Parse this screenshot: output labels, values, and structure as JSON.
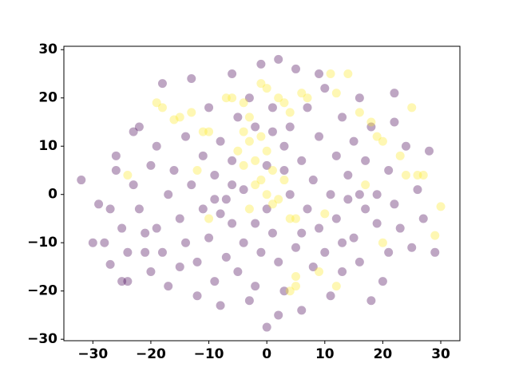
{
  "chart_data": {
    "type": "scatter",
    "xlim": [
      -35,
      33.3
    ],
    "ylim": [
      -30.3,
      30.7
    ],
    "xticks": [
      {
        "value": -30,
        "label": "−30"
      },
      {
        "value": -20,
        "label": "−20"
      },
      {
        "value": -10,
        "label": "−10"
      },
      0,
      10,
      20,
      30
    ],
    "yticks": [
      {
        "value": -30,
        "label": "−30"
      },
      {
        "value": -20,
        "label": "−20"
      },
      {
        "value": -10,
        "label": "−10"
      },
      0,
      10,
      20,
      30
    ],
    "grid": false,
    "opacity": 0.35,
    "series": [
      {
        "color": "#440154",
        "x": [
          -32,
          -29,
          -28,
          -27,
          -26,
          -26,
          -25,
          -24,
          -24,
          -23,
          -22,
          -22,
          -21,
          -20,
          -20,
          -19,
          -18,
          -18,
          -17,
          -17,
          -16,
          -15,
          -14,
          -14,
          -13,
          -13,
          -12,
          -12,
          -11,
          -11,
          -10,
          -10,
          -9,
          -9,
          -8,
          -8,
          -7,
          -7,
          -6,
          -6,
          -6,
          -5,
          -5,
          -4,
          -4,
          -3,
          -3,
          -2,
          -2,
          -1,
          -1,
          0,
          0,
          1,
          1,
          2,
          2,
          3,
          3,
          4,
          4,
          5,
          5,
          6,
          6,
          7,
          7,
          8,
          8,
          9,
          9,
          10,
          10,
          11,
          11,
          12,
          12,
          13,
          13,
          14,
          14,
          15,
          15,
          16,
          16,
          17,
          17,
          18,
          18,
          19,
          19,
          20,
          21,
          21,
          22,
          22,
          23,
          24,
          25,
          26,
          27,
          28,
          29,
          -30,
          -27,
          -25,
          -23,
          -21,
          -19,
          -15,
          -8,
          3,
          0,
          -6,
          1,
          6,
          13,
          16,
          22,
          -2,
          2,
          9,
          -9
        ],
        "values": [
          3,
          -2,
          -10,
          -14.5,
          8,
          5,
          -7,
          -18,
          -12,
          2,
          14,
          -3,
          -8,
          6,
          -16,
          10,
          23,
          -12,
          0,
          -19,
          5,
          -5,
          12,
          -10,
          24,
          2,
          -14,
          -21,
          8,
          -3,
          18,
          -9,
          4,
          -18,
          -23,
          11,
          -1,
          -13,
          25,
          7,
          -6,
          16,
          -16,
          1,
          -10,
          -22,
          20,
          -6,
          14,
          27,
          -12,
          -27.5,
          -3,
          18,
          -8,
          28,
          -14,
          10,
          -20,
          14,
          0,
          26,
          -11,
          -24,
          7,
          -3,
          18,
          -15,
          3,
          -7,
          12,
          22,
          -12,
          0,
          -21,
          8,
          -5,
          16,
          -16,
          -1,
          4,
          -9,
          11,
          -14,
          20,
          -3,
          7,
          -22,
          14,
          0,
          -6,
          -18,
          5,
          -12,
          15,
          -2,
          -7,
          10,
          -11,
          1,
          -5,
          9,
          -12,
          -10,
          -3,
          -18,
          13,
          -12,
          -7,
          -15,
          -4,
          5,
          6,
          2,
          13,
          -8,
          -10,
          0,
          21,
          -19,
          -25,
          25,
          -1
        ]
      },
      {
        "color": "#fde725",
        "x": [
          -19,
          -18,
          -16,
          -15,
          -13,
          -11,
          -10,
          -7,
          -6,
          -4,
          -3,
          -1,
          0,
          2,
          3,
          4,
          6,
          7,
          11,
          12,
          14,
          16,
          18,
          19,
          20,
          25,
          23,
          24,
          26,
          27,
          30,
          29,
          -24,
          -12,
          -3,
          -1,
          0,
          1,
          -2,
          -4,
          -1,
          0,
          2,
          4,
          5,
          -3,
          5,
          4,
          5,
          12,
          9,
          10,
          20,
          3,
          -5,
          -4,
          -2,
          1,
          -10,
          17
        ],
        "values": [
          19,
          18,
          15.5,
          16,
          17,
          13,
          13,
          20,
          20,
          19,
          16,
          23,
          22,
          20,
          19,
          17,
          21,
          20,
          25,
          21,
          25,
          17,
          15,
          12,
          11,
          18,
          8,
          4,
          4,
          4,
          -2.5,
          -8.5,
          4,
          5,
          11,
          12,
          9,
          5,
          7,
          6,
          3,
          0,
          -1,
          -5,
          -5,
          -3,
          -17,
          -20,
          -19,
          -19,
          -16,
          -4,
          -10,
          3,
          9,
          13,
          2,
          -2,
          -5,
          2
        ]
      }
    ]
  }
}
